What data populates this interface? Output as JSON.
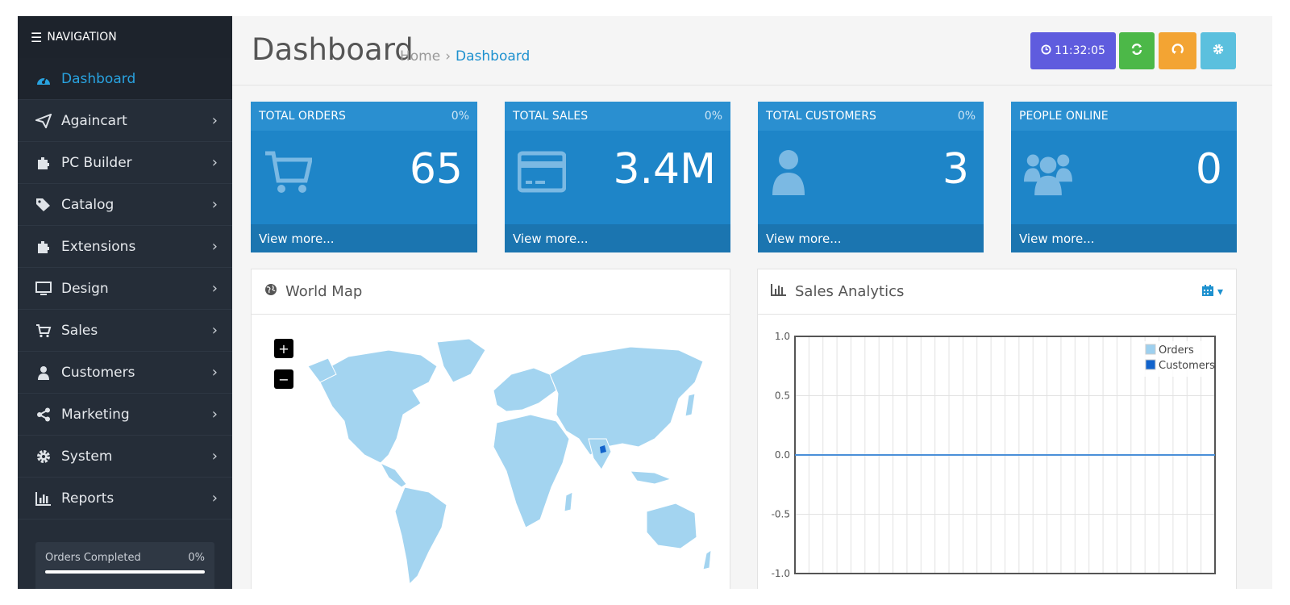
{
  "sidebar": {
    "heading": "NAVIGATION",
    "items": [
      {
        "label": "Dashboard",
        "icon": "dashboard-icon",
        "active": true
      },
      {
        "label": "Againcart",
        "icon": "paper-plane-icon"
      },
      {
        "label": "PC Builder",
        "icon": "puzzle-icon"
      },
      {
        "label": "Catalog",
        "icon": "tags-icon"
      },
      {
        "label": "Extensions",
        "icon": "puzzle-icon"
      },
      {
        "label": "Design",
        "icon": "desktop-icon"
      },
      {
        "label": "Sales",
        "icon": "cart-icon"
      },
      {
        "label": "Customers",
        "icon": "user-icon"
      },
      {
        "label": "Marketing",
        "icon": "share-icon"
      },
      {
        "label": "System",
        "icon": "gear-icon"
      },
      {
        "label": "Reports",
        "icon": "bar-chart-icon"
      }
    ],
    "progress": {
      "label": "Orders Completed",
      "value": "0%",
      "fraction": 0
    }
  },
  "header": {
    "title": "Dashboard",
    "breadcrumb": [
      "Home",
      "Dashboard"
    ],
    "breadcrumb_sep": "›",
    "time": "11:32:05"
  },
  "tiles": [
    {
      "title": "TOTAL ORDERS",
      "pct": "0%",
      "value": "65",
      "link": "View more...",
      "icon": "cart-icon"
    },
    {
      "title": "TOTAL SALES",
      "pct": "0%",
      "value": "3.4M",
      "link": "View more...",
      "icon": "credit-card-icon"
    },
    {
      "title": "TOTAL CUSTOMERS",
      "pct": "0%",
      "value": "3",
      "link": "View more...",
      "icon": "user-icon"
    },
    {
      "title": "PEOPLE ONLINE",
      "pct": "",
      "value": "0",
      "link": "View more...",
      "icon": "users-icon"
    }
  ],
  "map": {
    "title": "World Map",
    "zoom_in": "+",
    "zoom_out": "−"
  },
  "chart": {
    "title": "Sales Analytics",
    "legend": [
      "Orders",
      "Customers"
    ],
    "colors": {
      "orders": "#9dd0ef",
      "customers": "#1163cc"
    }
  },
  "chart_data": {
    "type": "line",
    "ylim": [
      -1.0,
      1.0
    ],
    "yticks": [
      "1.0",
      "0.5",
      "0.0",
      "-0.5",
      "-1.0"
    ],
    "series": [
      {
        "name": "Orders",
        "values": [
          0
        ]
      },
      {
        "name": "Customers",
        "values": [
          0
        ]
      }
    ],
    "grid": true,
    "legend_position": "top-right"
  }
}
